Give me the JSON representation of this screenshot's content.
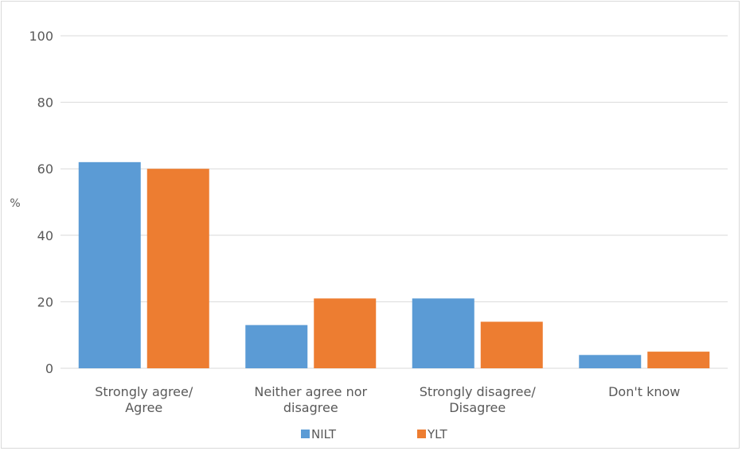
{
  "chart_data": {
    "type": "bar",
    "categories": [
      [
        "Strongly agree/",
        "Agree"
      ],
      [
        "Neither agree nor",
        "disagree"
      ],
      [
        "Strongly disagree/",
        "Disagree"
      ],
      [
        "Don't know"
      ]
    ],
    "series": [
      {
        "name": "NILT",
        "values": [
          62,
          13,
          21,
          4
        ],
        "color": "#5B9BD5"
      },
      {
        "name": "YLT",
        "values": [
          60,
          21,
          14,
          5
        ],
        "color": "#ED7D31"
      }
    ],
    "ylabel": "%",
    "ylim": [
      0,
      100
    ],
    "yticks": [
      0,
      20,
      40,
      60,
      80,
      100
    ],
    "grid": true,
    "legend_position": "bottom"
  },
  "colors": {
    "gridline": "#d9d9d9",
    "text": "#595959"
  }
}
